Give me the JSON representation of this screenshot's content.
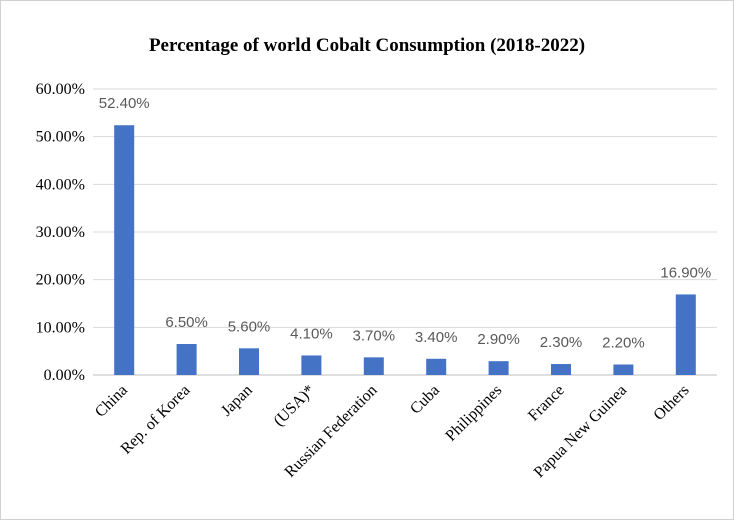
{
  "chart_data": {
    "type": "bar",
    "title": "Percentage of world Cobalt Consumption (2018-2022)",
    "categories": [
      "China",
      "Rep. of Korea",
      "Japan",
      "(USA)*",
      "Russian Federation",
      "Cuba",
      "Philippines",
      "France",
      "Papua New Guinea",
      "Others"
    ],
    "values": [
      52.4,
      6.5,
      5.6,
      4.1,
      3.7,
      3.4,
      2.9,
      2.3,
      2.2,
      16.9
    ],
    "data_labels": [
      "52.40%",
      "6.50%",
      "5.60%",
      "4.10%",
      "3.70%",
      "3.40%",
      "2.90%",
      "2.30%",
      "2.20%",
      "16.90%"
    ],
    "y_ticks": [
      0,
      10,
      20,
      30,
      40,
      50,
      60
    ],
    "y_tick_labels": [
      "0.00%",
      "10.00%",
      "20.00%",
      "30.00%",
      "40.00%",
      "50.00%",
      "60.00%"
    ],
    "ylim": [
      0,
      60
    ],
    "grid": true,
    "legend": "none",
    "bar_color": "#4472c4",
    "xlabel": "",
    "ylabel": ""
  }
}
